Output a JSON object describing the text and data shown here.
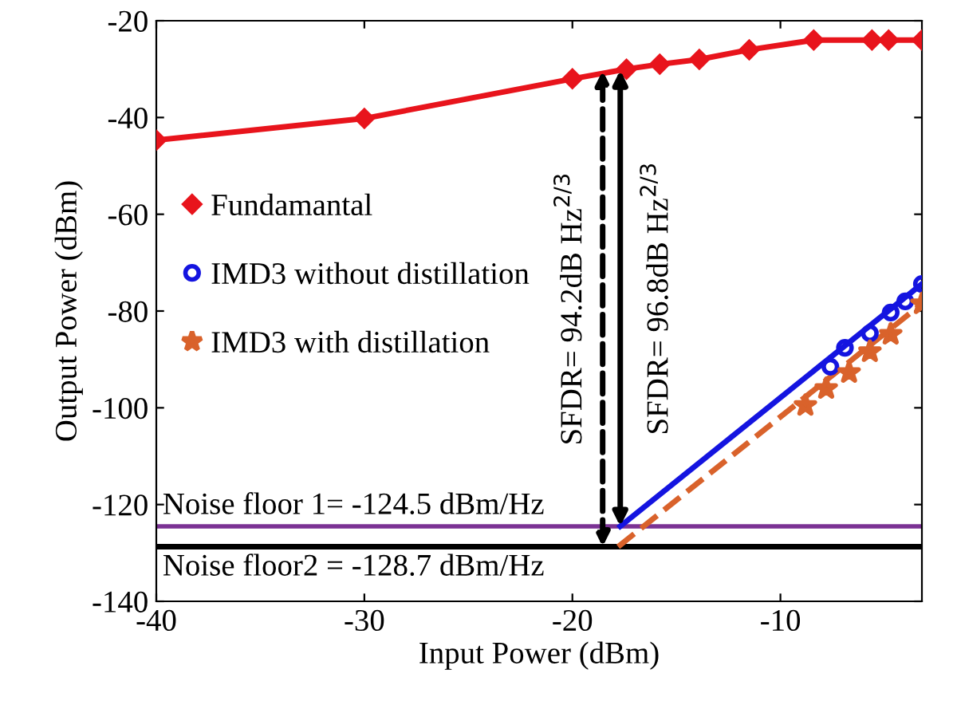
{
  "chart_data": {
    "type": "line",
    "xlabel": "Input Power (dBm)",
    "ylabel": "Output Power (dBm)",
    "xlim": [
      -40,
      -3.2
    ],
    "ylim": [
      -140,
      -20
    ],
    "xticks": [
      -40,
      -30,
      -20,
      -10
    ],
    "yticks": [
      -140,
      -120,
      -100,
      -80,
      -60,
      -40,
      -20
    ],
    "grid": false,
    "legend": "left",
    "series": [
      {
        "name": "Fundamantal",
        "color": "#e8141c",
        "marker": "diamond",
        "line_style": "solid",
        "x": [
          -40,
          -30,
          -20,
          -17.4,
          -15.8,
          -13.9,
          -11.5,
          -8.4,
          -5.6,
          -4.8,
          -3.2
        ],
        "values": [
          -44.7,
          -40.2,
          -32,
          -30,
          -29,
          -28,
          -26,
          -24,
          -24,
          -24,
          -24
        ]
      },
      {
        "color": "#1414e0",
        "line_style": "solid",
        "x": [
          -17.7,
          -3.2
        ],
        "values": [
          -124.5,
          -74.4
        ]
      },
      {
        "name": "IMD3 without distillation",
        "type": "scatter",
        "color": "#1414e0",
        "marker": "circle",
        "x": [
          -7.6,
          -6.9,
          -5.7,
          -4.7,
          -4.0,
          -3.2
        ],
        "values": [
          -91.5,
          -87.6,
          -84.6,
          -80.3,
          -78,
          -74.4
        ]
      },
      {
        "color": "#d9622b",
        "line_style": "dashed",
        "x": [
          -17.8,
          -3.2
        ],
        "values": [
          -128.7,
          -78.5
        ]
      },
      {
        "name": "IMD3 with distillation",
        "type": "scatter",
        "color": "#d9622b",
        "marker": "star",
        "x": [
          -8.8,
          -7.8,
          -6.7,
          -5.7,
          -4.7,
          -3.2
        ],
        "values": [
          -99.5,
          -96,
          -92.7,
          -88.4,
          -84.8,
          -78.5
        ]
      }
    ],
    "ref_lines": [
      {
        "axis": "y",
        "value": -124.5,
        "label": "Noise floor 1= -124.5 dBm/Hz",
        "color": "#7b3294"
      },
      {
        "axis": "y",
        "value": -128.7,
        "label": "Noise floor2 = -128.7 dBm/Hz",
        "color": "#000000"
      }
    ],
    "annotations": [
      "SFDR= 94.2dB Hz$^{2/3}$",
      "SFDR= 96.8dB Hz$^{2/3}$"
    ]
  }
}
